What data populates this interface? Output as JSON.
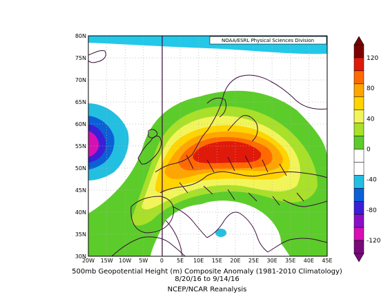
{
  "credit": "NOAA/ESRL Physical Sciences Division",
  "caption": {
    "line1": "500mb Geopotential Height (m) Composite Anomaly (1981-2010 Climatology)",
    "line2": "8/20/16  to 9/14/16",
    "line3": "NCEP/NCAR Reanalysis"
  },
  "lat_labels": [
    "80N",
    "75N",
    "70N",
    "65N",
    "60N",
    "55N",
    "50N",
    "45N",
    "40N",
    "35N",
    "30N"
  ],
  "lon_labels": [
    "20W",
    "15W",
    "10W",
    "5W",
    "0",
    "5E",
    "10E",
    "15E",
    "20E",
    "25E",
    "30E",
    "35E",
    "40E",
    "45E"
  ],
  "colorbar": {
    "labels": [
      "120",
      "80",
      "40",
      "0",
      "-40",
      "-80",
      "-120"
    ],
    "colors": [
      "#7b0000",
      "#e01a0a",
      "#ff6a00",
      "#ffa500",
      "#ffd400",
      "#f2f55a",
      "#a8e02a",
      "#5ccc2a",
      "#ffffff",
      "#ffffff",
      "#23bfe0",
      "#0c5fd6",
      "#3a1fd6",
      "#8a10c8",
      "#d610b4",
      "#7a0a7a"
    ]
  },
  "colors": {
    "ocean": "#ffffff",
    "coast": "#3a0a3a",
    "grid": "#b0b0b0",
    "cyan_band": "#23c8e8"
  }
}
